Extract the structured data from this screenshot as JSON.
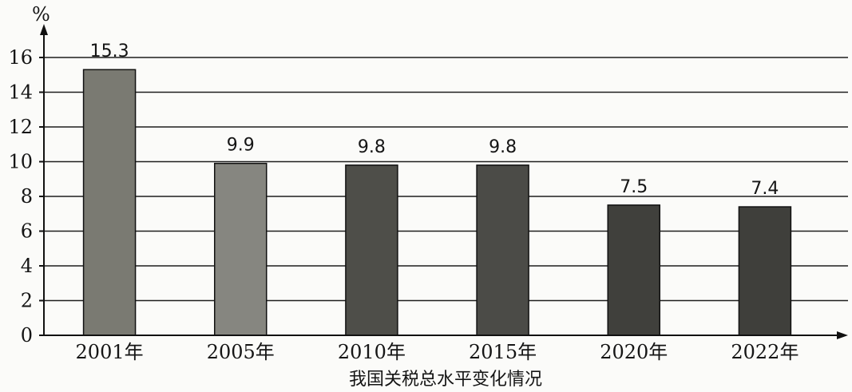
{
  "chart_data": {
    "type": "bar",
    "title": "我国关税总水平变化情况",
    "ylabel": "%",
    "xlabel": "",
    "categories": [
      "2001年",
      "2005年",
      "2010年",
      "2015年",
      "2020年",
      "2022年"
    ],
    "values": [
      15.3,
      9.9,
      9.8,
      9.8,
      7.5,
      7.4
    ],
    "data_labels": [
      "15.3",
      "9.9",
      "9.8",
      "9.8",
      "7.5",
      "7.4"
    ],
    "ylim": [
      0,
      16
    ],
    "yticks": [
      0,
      2,
      4,
      6,
      8,
      10,
      12,
      14,
      16
    ],
    "grid": true,
    "bar_colors": [
      "#7a7a72",
      "#868680",
      "#4e4e49",
      "#4b4b47",
      "#40403c",
      "#3f3f3b"
    ]
  }
}
